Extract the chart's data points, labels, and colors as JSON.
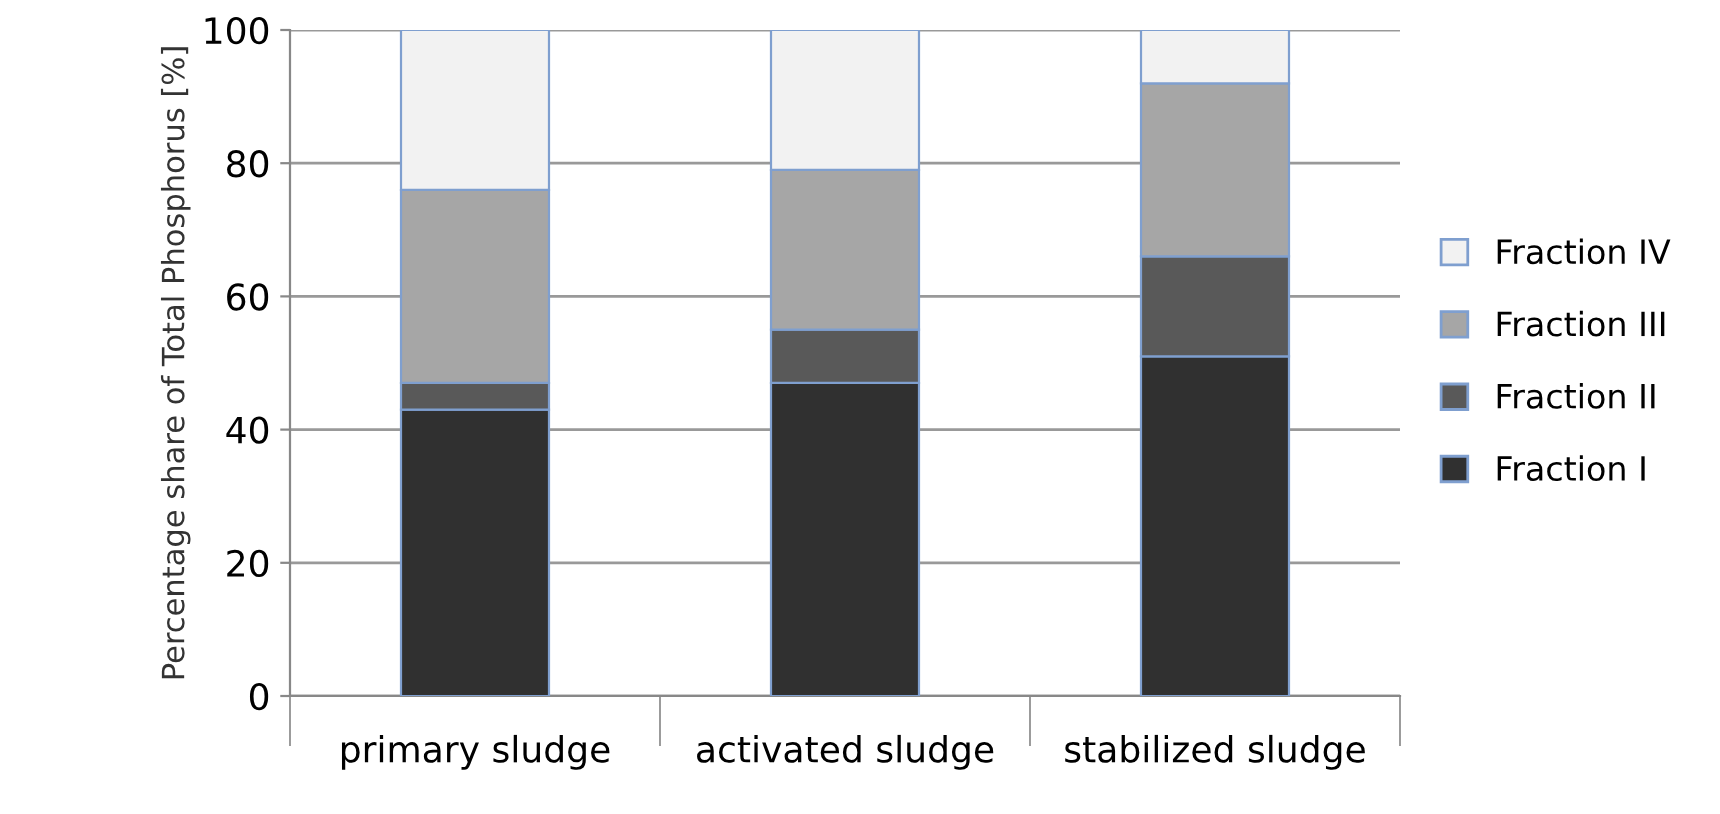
{
  "chart_data": {
    "type": "bar",
    "stacked": true,
    "ylabel": "Percentage share of Total Phosphorus [%]",
    "categories": [
      "primary sludge",
      "activated sludge",
      "stabilized sludge"
    ],
    "series": [
      {
        "name": "Fraction I",
        "color": "#303030",
        "values": [
          43,
          47,
          51
        ]
      },
      {
        "name": "Fraction II",
        "color": "#595959",
        "values": [
          4,
          8,
          15
        ]
      },
      {
        "name": "Fraction III",
        "color": "#a6a6a6",
        "values": [
          29,
          24,
          26
        ]
      },
      {
        "name": "Fraction IV",
        "color": "#f2f2f2",
        "values": [
          24,
          21,
          8
        ]
      }
    ],
    "ylim": [
      0,
      100
    ],
    "yticks": [
      0,
      20,
      40,
      60,
      80,
      100
    ],
    "grid": "y",
    "legend": "right"
  }
}
